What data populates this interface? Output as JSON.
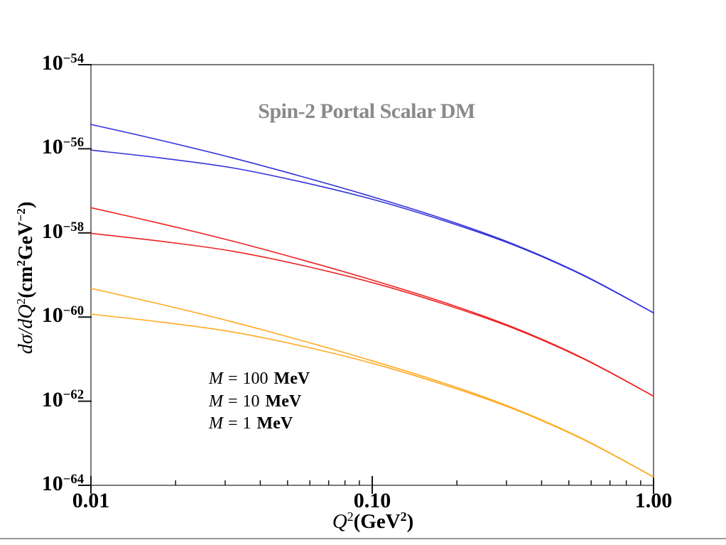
{
  "frame": {
    "color": "#7a7a7a",
    "tick_color": "#141414",
    "bottom_rule_color": "#999999",
    "background": "#ffffff"
  },
  "chart_data": {
    "type": "line",
    "title": "Spin-2 Portal Scalar DM",
    "title_color": "#8a8a8a",
    "x_axis": {
      "scale": "log",
      "min": 0.01,
      "max": 1.0,
      "major_ticks": [
        {
          "value": 0.01,
          "label": "0.01"
        },
        {
          "value": 0.1,
          "label": "0.10"
        },
        {
          "value": 1.0,
          "label": "1.00"
        }
      ],
      "minor_ticks": [
        0.02,
        0.03,
        0.04,
        0.05,
        0.06,
        0.07,
        0.08,
        0.09,
        0.2,
        0.3,
        0.4,
        0.5,
        0.6,
        0.7,
        0.8,
        0.9
      ]
    },
    "y_axis": {
      "scale": "log",
      "top_exponent": -54,
      "bottom_exponent": -64,
      "tick_base": "10",
      "major_ticks": [
        {
          "exponent": -54,
          "exp_label": "−54"
        },
        {
          "exponent": -56,
          "exp_label": "−56"
        },
        {
          "exponent": -58,
          "exp_label": "−58"
        },
        {
          "exponent": -60,
          "exp_label": "−60"
        },
        {
          "exponent": -62,
          "exp_label": "−62"
        },
        {
          "exponent": -64,
          "exp_label": "−64"
        }
      ]
    },
    "x_log10": [
      -2,
      -1.75,
      -1.5,
      -1.25,
      -1,
      -0.75,
      -0.5,
      -0.25,
      0
    ],
    "series": [
      {
        "name": "M = 100 MeV (upper)",
        "mass_mev": 100,
        "color": "#3232dc",
        "y_log10": [
          -55.42,
          -55.8,
          -56.21,
          -56.66,
          -57.14,
          -57.66,
          -58.26,
          -59.0,
          -59.9
        ]
      },
      {
        "name": "M = 100 MeV (lower)",
        "mass_mev": 100,
        "color": "#3232dc",
        "y_log10": [
          -56.03,
          -56.22,
          -56.45,
          -56.79,
          -57.2,
          -57.7,
          -58.28,
          -59.01,
          -59.9
        ]
      },
      {
        "name": "M = 10 MeV (upper)",
        "mass_mev": 10,
        "color": "#ee2222",
        "y_log10": [
          -57.4,
          -57.78,
          -58.19,
          -58.64,
          -59.12,
          -59.64,
          -60.24,
          -60.98,
          -61.88
        ]
      },
      {
        "name": "M = 10 MeV (lower)",
        "mass_mev": 10,
        "color": "#ee2222",
        "y_log10": [
          -58.01,
          -58.2,
          -58.43,
          -58.77,
          -59.18,
          -59.68,
          -60.26,
          -60.99,
          -61.88
        ]
      },
      {
        "name": "M = 1 MeV (upper)",
        "mass_mev": 1,
        "color": "#ffaa22",
        "y_log10": [
          -59.32,
          -59.7,
          -60.11,
          -60.56,
          -61.04,
          -61.56,
          -62.16,
          -62.9,
          -63.8
        ]
      },
      {
        "name": "M = 1 MeV (lower)",
        "mass_mev": 1,
        "color": "#ffaa22",
        "y_log10": [
          -59.93,
          -60.12,
          -60.35,
          -60.69,
          -61.1,
          -61.6,
          -62.18,
          -62.91,
          -63.8
        ]
      }
    ],
    "legend": {
      "items": [
        {
          "symbol": "M",
          "eq": "=",
          "value": "100",
          "unit": "MeV"
        },
        {
          "symbol": "M",
          "eq": "=",
          "value": "10",
          "unit": "MeV"
        },
        {
          "symbol": "M",
          "eq": "=",
          "value": "1",
          "unit": "MeV"
        }
      ]
    },
    "xlabel": {
      "p1": "Q",
      "sup1": "2",
      "p2": "(GeV",
      "sup2": "2",
      "p3": ")"
    },
    "ylabel": {
      "p1": "dσ/dQ",
      "sup1": "2",
      "p2": "(cm",
      "sup2": "2",
      "p3": "GeV",
      "sup3": "−2",
      "p4": ")"
    }
  }
}
